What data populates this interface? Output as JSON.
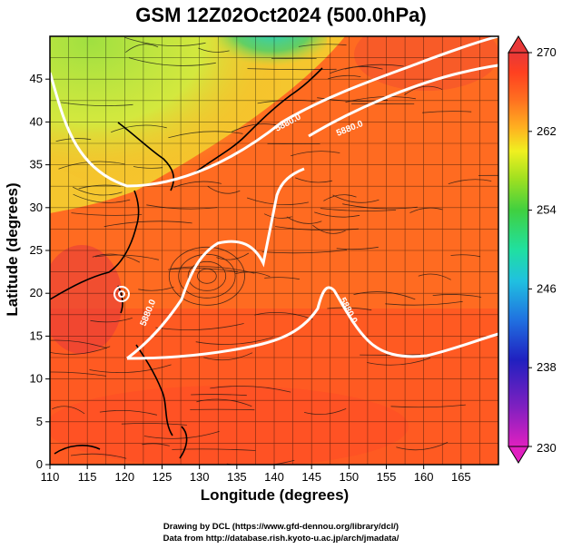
{
  "chart_data": {
    "type": "heatmap",
    "title": "GSM 12Z02Oct2024 (500.0hPa)",
    "xlabel": "Longitude (degrees)",
    "ylabel": "Latitude  (degrees)",
    "xlim": [
      110,
      170
    ],
    "ylim": [
      0,
      50
    ],
    "x_ticks": [
      110,
      115,
      120,
      125,
      130,
      135,
      140,
      145,
      150,
      155,
      160,
      165
    ],
    "y_ticks": [
      0,
      5,
      10,
      15,
      20,
      25,
      30,
      35,
      40,
      45
    ],
    "grid": true,
    "colorbar": {
      "min": 230,
      "max": 270,
      "ticks": [
        230,
        238,
        246,
        254,
        262,
        270
      ],
      "colors": [
        "#e020c0",
        "#8020c0",
        "#2020c0",
        "#2070e0",
        "#20c0e0",
        "#20e0a0",
        "#40d040",
        "#a0e020",
        "#f0f020",
        "#ffb020",
        "#ff7020",
        "#ff4020",
        "#e83838"
      ]
    },
    "contours": [
      {
        "label": "5880.0"
      },
      {
        "label": "5880.0"
      },
      {
        "label": "5880.0"
      },
      {
        "label": "5880.0"
      }
    ],
    "overlay": "streamlines"
  },
  "credits": {
    "line1": "Drawing by DCL (https://www.gfd-dennou.org/library/dcl/)",
    "line2": "Data from http://database.rish.kyoto-u.ac.jp/arch/jmadata/"
  }
}
